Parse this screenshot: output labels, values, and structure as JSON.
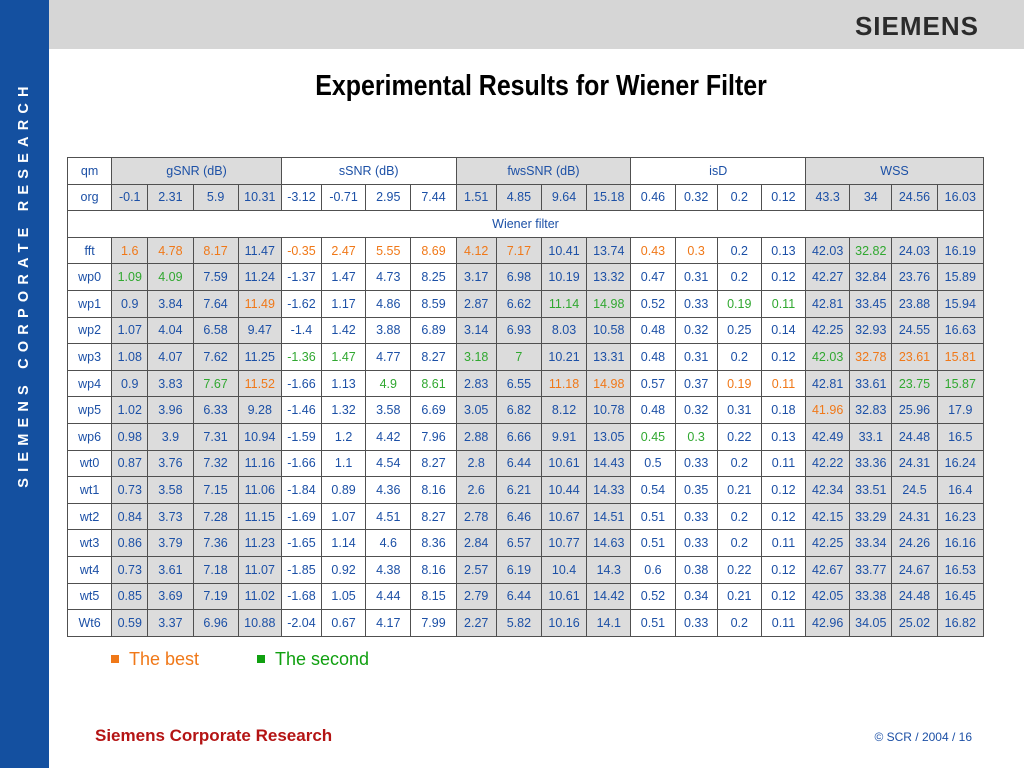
{
  "sidebar": {
    "text": "SIEMENS CORPORATE RESEARCH"
  },
  "header": {
    "logo": "SIEMENS"
  },
  "title": "Experimental Results for Wiener Filter",
  "table": {
    "group_headers": [
      "qm",
      "gSNR (dB)",
      "sSNR (dB)",
      "fwsSNR (dB)",
      "isD",
      "WSS"
    ],
    "section_label": "Wiener filter",
    "org_row": {
      "label": "org",
      "values": [
        "-0.1",
        "2.31",
        "5.9",
        "10.31",
        "-3.12",
        "-0.71",
        "2.95",
        "7.44",
        "1.51",
        "4.85",
        "9.64",
        "15.18",
        "0.46",
        "0.32",
        "0.2",
        "0.12",
        "43.3",
        "34",
        "24.56",
        "16.03"
      ]
    },
    "rows": [
      {
        "label": "fft",
        "values": [
          "1.6",
          "4.78",
          "8.17",
          "11.47",
          "-0.35",
          "2.47",
          "5.55",
          "8.69",
          "4.12",
          "7.17",
          "10.41",
          "13.74",
          "0.43",
          "0.3",
          "0.2",
          "0.13",
          "42.03",
          "32.82",
          "24.03",
          "16.19"
        ]
      },
      {
        "label": "wp0",
        "values": [
          "1.09",
          "4.09",
          "7.59",
          "11.24",
          "-1.37",
          "1.47",
          "4.73",
          "8.25",
          "3.17",
          "6.98",
          "10.19",
          "13.32",
          "0.47",
          "0.31",
          "0.2",
          "0.12",
          "42.27",
          "32.84",
          "23.76",
          "15.89"
        ]
      },
      {
        "label": "wp1",
        "values": [
          "0.9",
          "3.84",
          "7.64",
          "11.49",
          "-1.62",
          "1.17",
          "4.86",
          "8.59",
          "2.87",
          "6.62",
          "11.14",
          "14.98",
          "0.52",
          "0.33",
          "0.19",
          "0.11",
          "42.81",
          "33.45",
          "23.88",
          "15.94"
        ]
      },
      {
        "label": "wp2",
        "values": [
          "1.07",
          "4.04",
          "6.58",
          "9.47",
          "-1.4",
          "1.42",
          "3.88",
          "6.89",
          "3.14",
          "6.93",
          "8.03",
          "10.58",
          "0.48",
          "0.32",
          "0.25",
          "0.14",
          "42.25",
          "32.93",
          "24.55",
          "16.63"
        ]
      },
      {
        "label": "wp3",
        "values": [
          "1.08",
          "4.07",
          "7.62",
          "11.25",
          "-1.36",
          "1.47",
          "4.77",
          "8.27",
          "3.18",
          "7",
          "10.21",
          "13.31",
          "0.48",
          "0.31",
          "0.2",
          "0.12",
          "42.03",
          "32.78",
          "23.61",
          "15.81"
        ]
      },
      {
        "label": "wp4",
        "values": [
          "0.9",
          "3.83",
          "7.67",
          "11.52",
          "-1.66",
          "1.13",
          "4.9",
          "8.61",
          "2.83",
          "6.55",
          "11.18",
          "14.98",
          "0.57",
          "0.37",
          "0.19",
          "0.11",
          "42.81",
          "33.61",
          "23.75",
          "15.87"
        ]
      },
      {
        "label": "wp5",
        "values": [
          "1.02",
          "3.96",
          "6.33",
          "9.28",
          "-1.46",
          "1.32",
          "3.58",
          "6.69",
          "3.05",
          "6.82",
          "8.12",
          "10.78",
          "0.48",
          "0.32",
          "0.31",
          "0.18",
          "41.96",
          "32.83",
          "25.96",
          "17.9"
        ]
      },
      {
        "label": "wp6",
        "values": [
          "0.98",
          "3.9",
          "7.31",
          "10.94",
          "-1.59",
          "1.2",
          "4.42",
          "7.96",
          "2.88",
          "6.66",
          "9.91",
          "13.05",
          "0.45",
          "0.3",
          "0.22",
          "0.13",
          "42.49",
          "33.1",
          "24.48",
          "16.5"
        ]
      },
      {
        "label": "wt0",
        "values": [
          "0.87",
          "3.76",
          "7.32",
          "11.16",
          "-1.66",
          "1.1",
          "4.54",
          "8.27",
          "2.8",
          "6.44",
          "10.61",
          "14.43",
          "0.5",
          "0.33",
          "0.2",
          "0.11",
          "42.22",
          "33.36",
          "24.31",
          "16.24"
        ]
      },
      {
        "label": "wt1",
        "values": [
          "0.73",
          "3.58",
          "7.15",
          "11.06",
          "-1.84",
          "0.89",
          "4.36",
          "8.16",
          "2.6",
          "6.21",
          "10.44",
          "14.33",
          "0.54",
          "0.35",
          "0.21",
          "0.12",
          "42.34",
          "33.51",
          "24.5",
          "16.4"
        ]
      },
      {
        "label": "wt2",
        "values": [
          "0.84",
          "3.73",
          "7.28",
          "11.15",
          "-1.69",
          "1.07",
          "4.51",
          "8.27",
          "2.78",
          "6.46",
          "10.67",
          "14.51",
          "0.51",
          "0.33",
          "0.2",
          "0.12",
          "42.15",
          "33.29",
          "24.31",
          "16.23"
        ]
      },
      {
        "label": "wt3",
        "values": [
          "0.86",
          "3.79",
          "7.36",
          "11.23",
          "-1.65",
          "1.14",
          "4.6",
          "8.36",
          "2.84",
          "6.57",
          "10.77",
          "14.63",
          "0.51",
          "0.33",
          "0.2",
          "0.11",
          "42.25",
          "33.34",
          "24.26",
          "16.16"
        ]
      },
      {
        "label": "wt4",
        "values": [
          "0.73",
          "3.61",
          "7.18",
          "11.07",
          "-1.85",
          "0.92",
          "4.38",
          "8.16",
          "2.57",
          "6.19",
          "10.4",
          "14.3",
          "0.6",
          "0.38",
          "0.22",
          "0.12",
          "42.67",
          "33.77",
          "24.67",
          "16.53"
        ]
      },
      {
        "label": "wt5",
        "values": [
          "0.85",
          "3.69",
          "7.19",
          "11.02",
          "-1.68",
          "1.05",
          "4.44",
          "8.15",
          "2.79",
          "6.44",
          "10.61",
          "14.42",
          "0.52",
          "0.34",
          "0.21",
          "0.12",
          "42.05",
          "33.38",
          "24.48",
          "16.45"
        ]
      },
      {
        "label": "Wt6",
        "values": [
          "0.59",
          "3.37",
          "6.96",
          "10.88",
          "-2.04",
          "0.67",
          "4.17",
          "7.99",
          "2.27",
          "5.82",
          "10.16",
          "14.1",
          "0.51",
          "0.33",
          "0.2",
          "0.11",
          "42.96",
          "34.05",
          "25.02",
          "16.82"
        ]
      }
    ],
    "highlights": {
      "best": [
        [
          0,
          0
        ],
        [
          0,
          1
        ],
        [
          0,
          2
        ],
        [
          0,
          4
        ],
        [
          0,
          5
        ],
        [
          0,
          6
        ],
        [
          0,
          7
        ],
        [
          0,
          8
        ],
        [
          0,
          9
        ],
        [
          0,
          12
        ],
        [
          0,
          13
        ],
        [
          2,
          3
        ],
        [
          5,
          3
        ],
        [
          5,
          10
        ],
        [
          5,
          11
        ],
        [
          5,
          14
        ],
        [
          5,
          15
        ],
        [
          4,
          17
        ],
        [
          4,
          18
        ],
        [
          4,
          19
        ],
        [
          6,
          16
        ]
      ],
      "second": [
        [
          1,
          0
        ],
        [
          1,
          1
        ],
        [
          2,
          10
        ],
        [
          2,
          11
        ],
        [
          2,
          14
        ],
        [
          2,
          15
        ],
        [
          4,
          4
        ],
        [
          4,
          5
        ],
        [
          4,
          8
        ],
        [
          4,
          9
        ],
        [
          5,
          2
        ],
        [
          5,
          6
        ],
        [
          5,
          7
        ],
        [
          7,
          12
        ],
        [
          7,
          13
        ],
        [
          0,
          17
        ],
        [
          4,
          16
        ],
        [
          5,
          18
        ],
        [
          5,
          19
        ]
      ]
    }
  },
  "legend": {
    "best": "The best",
    "second": "The second"
  },
  "colors": {
    "sidebar": "#1450a0",
    "header_bar": "#d6d6d6",
    "blue_text": "#1c50a6",
    "best": "#f07818",
    "second": "#30a830",
    "footer_red": "#b41414"
  },
  "footer": {
    "left": "Siemens Corporate Research",
    "right": "© SCR / 2004 / 16"
  }
}
